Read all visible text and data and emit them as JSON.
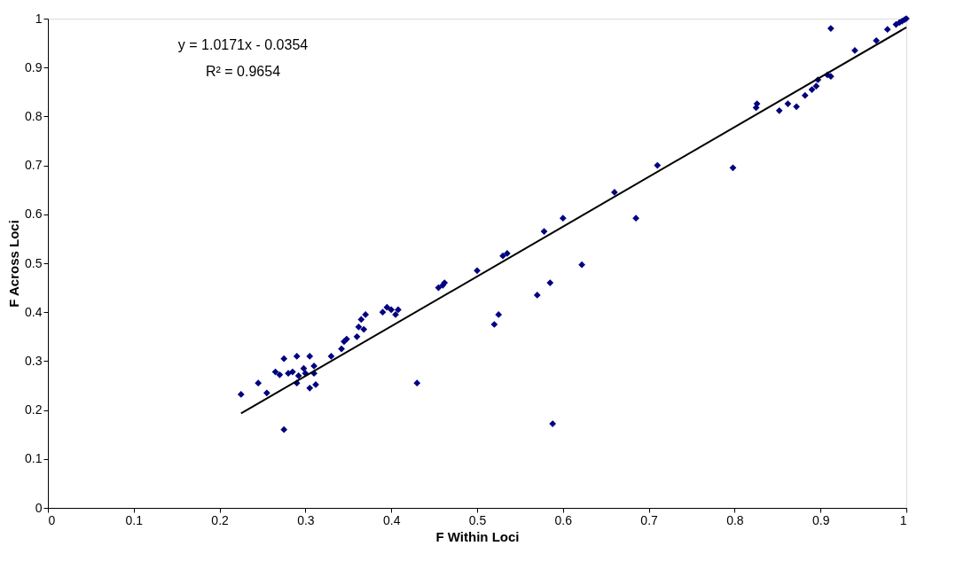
{
  "chart_data": {
    "type": "scatter",
    "xlabel": "F Within Loci",
    "ylabel": "F Across Loci",
    "annotations": [
      "y = 1.0171x - 0.0354",
      "R² = 0.9654"
    ],
    "xlim": [
      0,
      1
    ],
    "ylim": [
      0,
      1
    ],
    "xticks": [
      0,
      0.1,
      0.2,
      0.3,
      0.4,
      0.5,
      0.6,
      0.7,
      0.8,
      0.9,
      1
    ],
    "yticks": [
      0,
      0.1,
      0.2,
      0.3,
      0.4,
      0.5,
      0.6,
      0.7,
      0.8,
      0.9,
      1
    ],
    "grid": false,
    "marker": "diamond",
    "series": [
      {
        "type": "scatter",
        "color": "#000080",
        "x": [
          0.225,
          0.245,
          0.255,
          0.265,
          0.27,
          0.275,
          0.275,
          0.28,
          0.285,
          0.29,
          0.29,
          0.292,
          0.298,
          0.3,
          0.305,
          0.305,
          0.31,
          0.31,
          0.312,
          0.33,
          0.342,
          0.345,
          0.348,
          0.36,
          0.362,
          0.365,
          0.368,
          0.37,
          0.39,
          0.395,
          0.4,
          0.405,
          0.408,
          0.43,
          0.455,
          0.46,
          0.462,
          0.5,
          0.52,
          0.525,
          0.53,
          0.535,
          0.57,
          0.578,
          0.585,
          0.588,
          0.6,
          0.622,
          0.66,
          0.685,
          0.71,
          0.798,
          0.825,
          0.826,
          0.852,
          0.862,
          0.872,
          0.882,
          0.89,
          0.895,
          0.897,
          0.908,
          0.912,
          0.912,
          0.94,
          0.965,
          0.978,
          0.988,
          0.992,
          0.995,
          0.998,
          1.0
        ],
        "values": [
          0.232,
          0.255,
          0.235,
          0.278,
          0.272,
          0.305,
          0.16,
          0.275,
          0.278,
          0.31,
          0.255,
          0.27,
          0.285,
          0.275,
          0.31,
          0.245,
          0.29,
          0.275,
          0.252,
          0.31,
          0.325,
          0.34,
          0.345,
          0.35,
          0.37,
          0.385,
          0.365,
          0.395,
          0.4,
          0.41,
          0.405,
          0.395,
          0.405,
          0.255,
          0.45,
          0.455,
          0.46,
          0.485,
          0.375,
          0.395,
          0.515,
          0.52,
          0.435,
          0.565,
          0.46,
          0.172,
          0.592,
          0.497,
          0.645,
          0.592,
          0.7,
          0.695,
          0.818,
          0.826,
          0.812,
          0.826,
          0.82,
          0.843,
          0.855,
          0.862,
          0.875,
          0.885,
          0.882,
          0.98,
          0.935,
          0.955,
          0.978,
          0.988,
          0.992,
          0.995,
          0.998,
          1.0
        ]
      },
      {
        "type": "line",
        "color": "#000000",
        "line_style": "solid",
        "marker": "none",
        "x": [
          0.225,
          1.0
        ],
        "values": [
          0.193,
          0.982
        ]
      }
    ]
  }
}
